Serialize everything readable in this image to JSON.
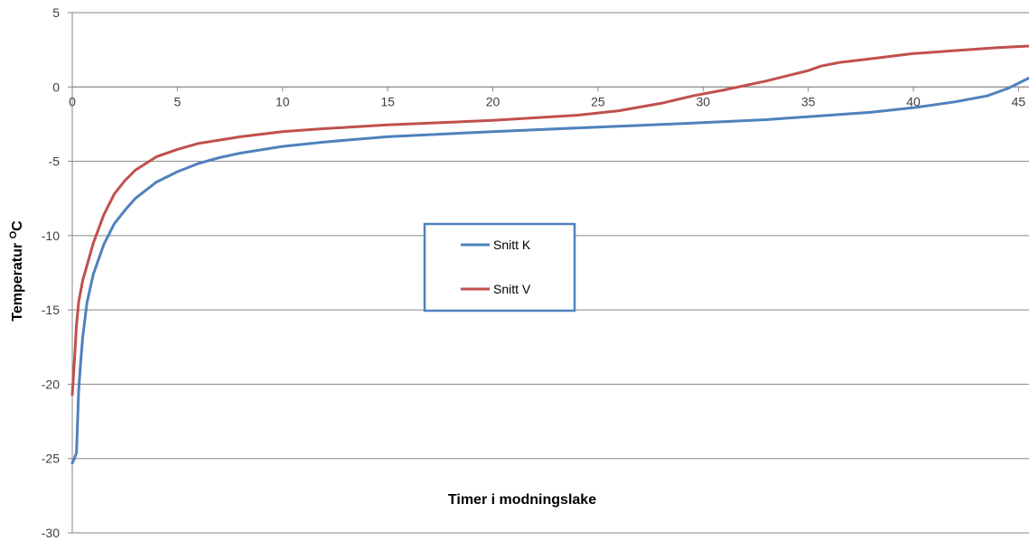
{
  "chart_data": {
    "type": "line",
    "title": "",
    "xlabel": "Timer i modningslake",
    "ylabel_main": "Temperatur ",
    "ylabel_sup": "O",
    "ylabel_tail": "C",
    "xlim": [
      0,
      45.5
    ],
    "ylim": [
      -30,
      5
    ],
    "xticks": [
      0,
      5,
      10,
      15,
      20,
      25,
      30,
      35,
      40,
      45
    ],
    "yticks": [
      5,
      0,
      -5,
      -10,
      -15,
      -20,
      -25,
      -30
    ],
    "grid": "horizontal",
    "legend_position": "center",
    "series": [
      {
        "name": "Snitt K",
        "color": "#4F81BD",
        "points": [
          [
            0,
            -25.3
          ],
          [
            0.1,
            -25.0
          ],
          [
            0.2,
            -24.6
          ],
          [
            0.3,
            -20.5
          ],
          [
            0.4,
            -18.5
          ],
          [
            0.5,
            -16.8
          ],
          [
            0.7,
            -14.5
          ],
          [
            1.0,
            -12.6
          ],
          [
            1.5,
            -10.6
          ],
          [
            2.0,
            -9.2
          ],
          [
            2.5,
            -8.3
          ],
          [
            3.0,
            -7.5
          ],
          [
            4.0,
            -6.4
          ],
          [
            5.0,
            -5.7
          ],
          [
            6.0,
            -5.15
          ],
          [
            7.0,
            -4.75
          ],
          [
            8.0,
            -4.45
          ],
          [
            10.0,
            -4.0
          ],
          [
            12.0,
            -3.7
          ],
          [
            15.0,
            -3.35
          ],
          [
            20.0,
            -3.0
          ],
          [
            25.0,
            -2.7
          ],
          [
            30.0,
            -2.4
          ],
          [
            33.0,
            -2.2
          ],
          [
            35.0,
            -2.0
          ],
          [
            38.0,
            -1.7
          ],
          [
            40.0,
            -1.4
          ],
          [
            42.0,
            -1.0
          ],
          [
            43.5,
            -0.6
          ],
          [
            44.5,
            -0.1
          ],
          [
            45.5,
            0.6
          ]
        ]
      },
      {
        "name": "Snitt V",
        "color": "#C0504D",
        "points": [
          [
            0,
            -20.7
          ],
          [
            0.1,
            -18.5
          ],
          [
            0.2,
            -16.0
          ],
          [
            0.3,
            -14.5
          ],
          [
            0.5,
            -13.0
          ],
          [
            0.7,
            -12.0
          ],
          [
            1.0,
            -10.5
          ],
          [
            1.5,
            -8.6
          ],
          [
            2.0,
            -7.2
          ],
          [
            2.5,
            -6.3
          ],
          [
            3.0,
            -5.6
          ],
          [
            4.0,
            -4.7
          ],
          [
            5.0,
            -4.2
          ],
          [
            6.0,
            -3.8
          ],
          [
            8.0,
            -3.35
          ],
          [
            10.0,
            -3.0
          ],
          [
            12.0,
            -2.8
          ],
          [
            15.0,
            -2.55
          ],
          [
            20.0,
            -2.25
          ],
          [
            24.0,
            -1.9
          ],
          [
            26.0,
            -1.6
          ],
          [
            28.0,
            -1.1
          ],
          [
            29.5,
            -0.6
          ],
          [
            31.0,
            -0.2
          ],
          [
            32.0,
            0.1
          ],
          [
            33.0,
            0.4
          ],
          [
            34.0,
            0.75
          ],
          [
            35.0,
            1.1
          ],
          [
            35.6,
            1.4
          ],
          [
            36.5,
            1.65
          ],
          [
            38.0,
            1.9
          ],
          [
            40.0,
            2.25
          ],
          [
            42.0,
            2.45
          ],
          [
            44.0,
            2.65
          ],
          [
            45.5,
            2.75
          ]
        ]
      }
    ]
  }
}
